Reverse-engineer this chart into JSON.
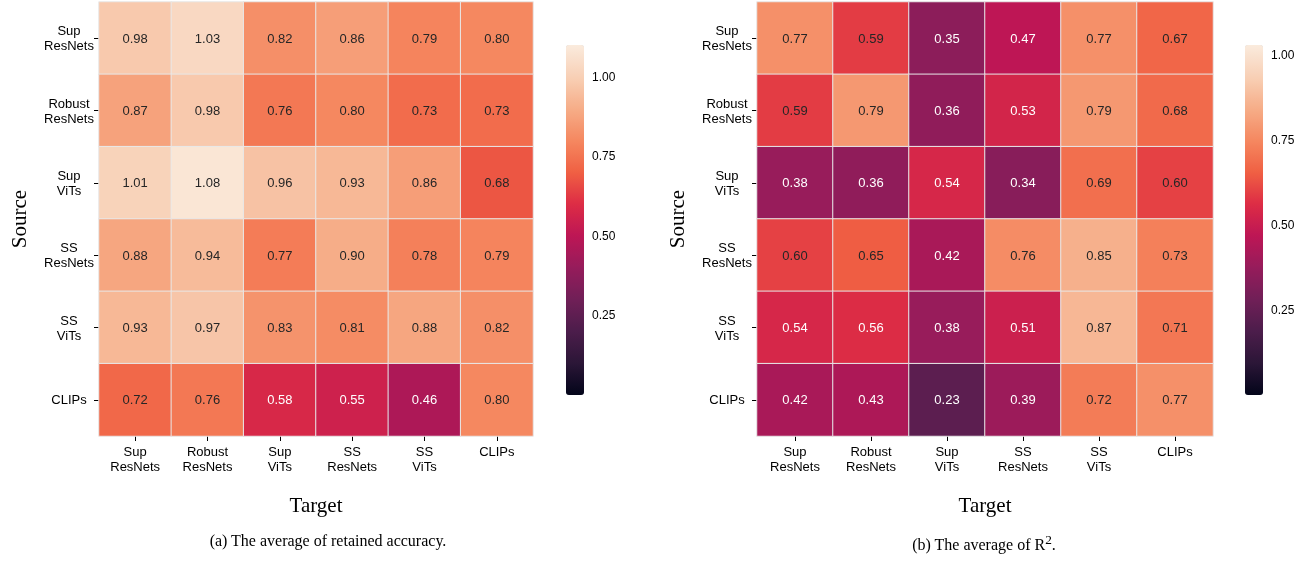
{
  "chart_data": [
    {
      "type": "heatmap",
      "xlabel": "Target",
      "ylabel": "Source",
      "annotations": [
        "(a) The average of retained accuracy."
      ],
      "categories": [
        "Sup ResNets",
        "Robust ResNets",
        "Sup ViTs",
        "SS ResNets",
        "SS ViTs",
        "CLIPs"
      ],
      "y_categories": [
        "Sup ResNets",
        "Robust ResNets",
        "Sup ViTs",
        "SS ResNets",
        "SS ViTs",
        "CLIPs"
      ],
      "cells": [
        [
          0.98,
          1.03,
          0.82,
          0.86,
          0.79,
          0.8
        ],
        [
          0.87,
          0.98,
          0.76,
          0.8,
          0.73,
          0.73
        ],
        [
          1.01,
          1.08,
          0.96,
          0.93,
          0.86,
          0.68
        ],
        [
          0.88,
          0.94,
          0.77,
          0.9,
          0.78,
          0.79
        ],
        [
          0.93,
          0.97,
          0.83,
          0.81,
          0.88,
          0.82
        ],
        [
          0.72,
          0.76,
          0.58,
          0.55,
          0.46,
          0.8
        ]
      ],
      "cell_labels": [
        [
          "0.98",
          "1.03",
          "0.82",
          "0.86",
          "0.79",
          "0.80"
        ],
        [
          "0.87",
          "0.98",
          "0.76",
          "0.80",
          "0.73",
          "0.73"
        ],
        [
          "1.01",
          "1.08",
          "0.96",
          "0.93",
          "0.86",
          "0.68"
        ],
        [
          "0.88",
          "0.94",
          "0.77",
          "0.90",
          "0.78",
          "0.79"
        ],
        [
          "0.93",
          "0.97",
          "0.83",
          "0.81",
          "0.88",
          "0.82"
        ],
        [
          "0.72",
          "0.76",
          "0.58",
          "0.55",
          "0.46",
          "0.80"
        ]
      ],
      "clim": [
        0,
        1.1
      ],
      "cticks": [
        {
          "value": 0.25,
          "label": "0.25"
        },
        {
          "value": 0.5,
          "label": "0.50"
        },
        {
          "value": 0.75,
          "label": "0.75"
        },
        {
          "value": 1.0,
          "label": "1.00"
        }
      ]
    },
    {
      "type": "heatmap",
      "xlabel": "Target",
      "ylabel": "Source",
      "annotations": [
        "(b) The average of R$^{2}$."
      ],
      "categories": [
        "Sup ResNets",
        "Robust ResNets",
        "Sup ViTs",
        "SS ResNets",
        "SS ViTs",
        "CLIPs"
      ],
      "y_categories": [
        "Sup ResNets",
        "Robust ResNets",
        "Sup ViTs",
        "SS ResNets",
        "SS ViTs",
        "CLIPs"
      ],
      "cells": [
        [
          0.77,
          0.59,
          0.35,
          0.47,
          0.77,
          0.67
        ],
        [
          0.59,
          0.79,
          0.36,
          0.53,
          0.79,
          0.68
        ],
        [
          0.38,
          0.36,
          0.54,
          0.34,
          0.69,
          0.6
        ],
        [
          0.6,
          0.65,
          0.42,
          0.76,
          0.85,
          0.73
        ],
        [
          0.54,
          0.56,
          0.38,
          0.51,
          0.87,
          0.71
        ],
        [
          0.42,
          0.43,
          0.23,
          0.39,
          0.72,
          0.77
        ]
      ],
      "cell_labels": [
        [
          "0.77",
          "0.59",
          "0.35",
          "0.47",
          "0.77",
          "0.67"
        ],
        [
          "0.59",
          "0.79",
          "0.36",
          "0.53",
          "0.79",
          "0.68"
        ],
        [
          "0.38",
          "0.36",
          "0.54",
          "0.34",
          "0.69",
          "0.60"
        ],
        [
          "0.60",
          "0.65",
          "0.42",
          "0.76",
          "0.85",
          "0.73"
        ],
        [
          "0.54",
          "0.56",
          "0.38",
          "0.51",
          "0.87",
          "0.71"
        ],
        [
          "0.42",
          "0.43",
          "0.23",
          "0.39",
          "0.72",
          "0.77"
        ]
      ],
      "clim": [
        0,
        1.03
      ],
      "cticks": [
        {
          "value": 0.25,
          "label": "0.25"
        },
        {
          "value": 0.5,
          "label": "0.50"
        },
        {
          "value": 0.75,
          "label": "0.75"
        },
        {
          "value": 1.0,
          "label": "1.00"
        }
      ]
    }
  ]
}
